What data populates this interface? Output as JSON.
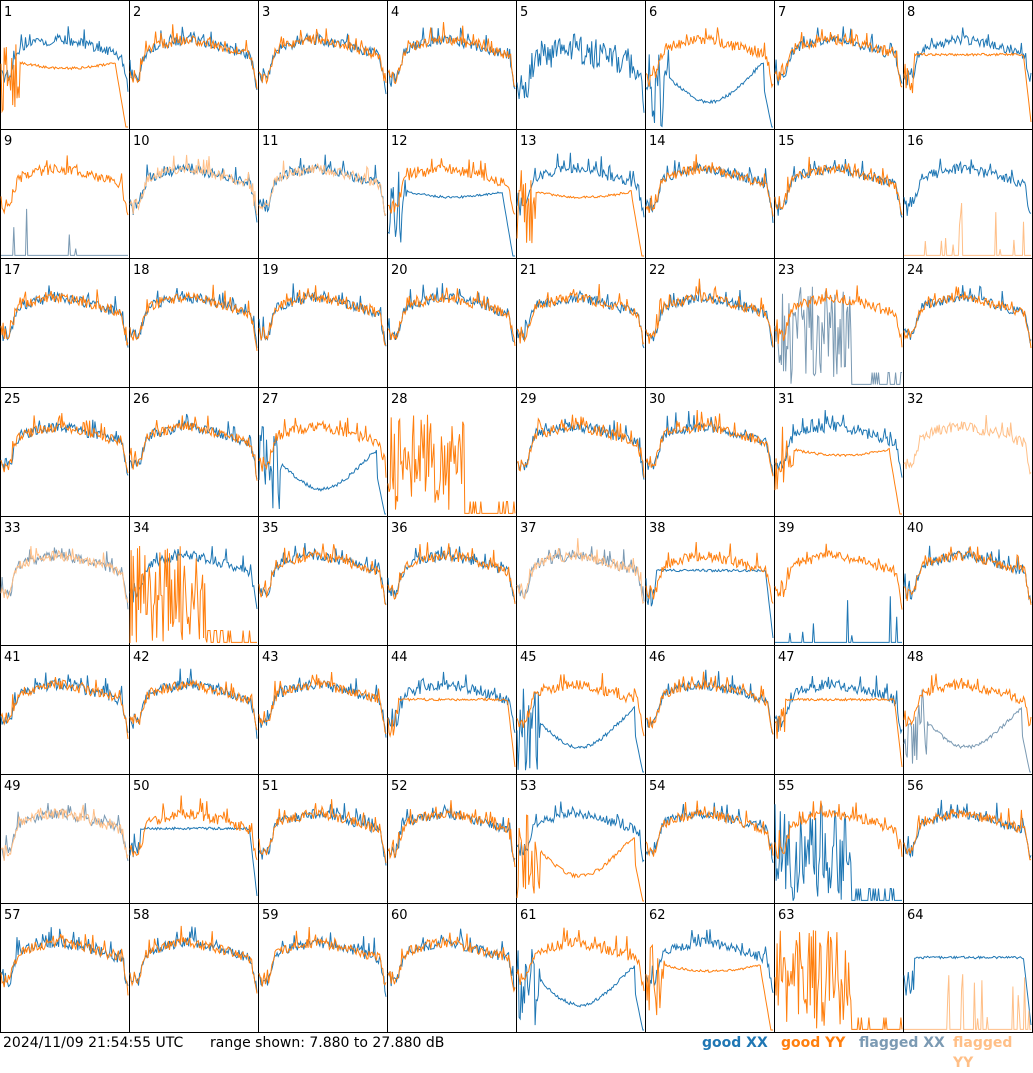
{
  "footer": {
    "timestamp": "2024/11/09 21:54:55 UTC",
    "range": "range shown: 7.880 to 27.880 dB"
  },
  "colors": {
    "good_xx": "#1f77b4",
    "good_yy": "#ff7f0e",
    "flagged_xx": "#7b9ab3",
    "flagged_yy": "#ffbf87"
  },
  "legend": [
    {
      "label": "good XX",
      "color": "#1f77b4"
    },
    {
      "label": "good YY",
      "color": "#ff7f0e"
    },
    {
      "label": "flagged XX",
      "color": "#7b9ab3"
    },
    {
      "label": "flagged YY",
      "color": "#ffbf87"
    }
  ],
  "chart_data": {
    "type": "line",
    "layout": "8x8 small multiples",
    "ylim": [
      7.88,
      27.88
    ],
    "yunit": "dB",
    "panels": [
      {
        "label": "1",
        "xx": "good",
        "yy": "good",
        "xx_shape": "normal",
        "yy_shape": "fall"
      },
      {
        "label": "2",
        "xx": "good",
        "yy": "good",
        "xx_shape": "normal",
        "yy_shape": "normal"
      },
      {
        "label": "3",
        "xx": "good",
        "yy": "good",
        "xx_shape": "normal",
        "yy_shape": "normal"
      },
      {
        "label": "4",
        "xx": "good",
        "yy": "good",
        "xx_shape": "normal",
        "yy_shape": "normal"
      },
      {
        "label": "5",
        "xx": "good",
        "yy": "good",
        "xx_shape": "noisy",
        "yy_shape": "none"
      },
      {
        "label": "6",
        "xx": "good",
        "yy": "good",
        "xx_shape": "dip",
        "yy_shape": "normal"
      },
      {
        "label": "7",
        "xx": "good",
        "yy": "good",
        "xx_shape": "normal",
        "yy_shape": "normal"
      },
      {
        "label": "8",
        "xx": "good",
        "yy": "good",
        "xx_shape": "normal",
        "yy_shape": "flat"
      },
      {
        "label": "9",
        "xx": "flagged",
        "yy": "good",
        "xx_shape": "spikes",
        "yy_shape": "normal"
      },
      {
        "label": "10",
        "xx": "good",
        "yy": "flagged",
        "xx_shape": "normal",
        "yy_shape": "normal"
      },
      {
        "label": "11",
        "xx": "good",
        "yy": "flagged",
        "xx_shape": "normal",
        "yy_shape": "normal"
      },
      {
        "label": "12",
        "xx": "good",
        "yy": "good",
        "xx_shape": "fall",
        "yy_shape": "normal"
      },
      {
        "label": "13",
        "xx": "good",
        "yy": "good",
        "xx_shape": "normal",
        "yy_shape": "fall"
      },
      {
        "label": "14",
        "xx": "good",
        "yy": "good",
        "xx_shape": "normal",
        "yy_shape": "normal"
      },
      {
        "label": "15",
        "xx": "good",
        "yy": "good",
        "xx_shape": "normal",
        "yy_shape": "normal"
      },
      {
        "label": "16",
        "xx": "good",
        "yy": "flagged",
        "xx_shape": "normal",
        "yy_shape": "spikes"
      },
      {
        "label": "17",
        "xx": "good",
        "yy": "good",
        "xx_shape": "normal",
        "yy_shape": "normal"
      },
      {
        "label": "18",
        "xx": "good",
        "yy": "good",
        "xx_shape": "normal",
        "yy_shape": "normal"
      },
      {
        "label": "19",
        "xx": "good",
        "yy": "good",
        "xx_shape": "normal",
        "yy_shape": "normal"
      },
      {
        "label": "20",
        "xx": "good",
        "yy": "good",
        "xx_shape": "normal",
        "yy_shape": "normal"
      },
      {
        "label": "21",
        "xx": "good",
        "yy": "good",
        "xx_shape": "normal",
        "yy_shape": "normal"
      },
      {
        "label": "22",
        "xx": "good",
        "yy": "good",
        "xx_shape": "normal",
        "yy_shape": "normal"
      },
      {
        "label": "23",
        "xx": "flagged",
        "yy": "good",
        "xx_shape": "bars",
        "yy_shape": "normal"
      },
      {
        "label": "24",
        "xx": "good",
        "yy": "good",
        "xx_shape": "normal",
        "yy_shape": "normal"
      },
      {
        "label": "25",
        "xx": "good",
        "yy": "good",
        "xx_shape": "normal",
        "yy_shape": "normal"
      },
      {
        "label": "26",
        "xx": "good",
        "yy": "good",
        "xx_shape": "normal",
        "yy_shape": "normal"
      },
      {
        "label": "27",
        "xx": "good",
        "yy": "good",
        "xx_shape": "dip",
        "yy_shape": "normal"
      },
      {
        "label": "28",
        "xx": "good",
        "yy": "good",
        "xx_shape": "none",
        "yy_shape": "bars"
      },
      {
        "label": "29",
        "xx": "good",
        "yy": "good",
        "xx_shape": "normal",
        "yy_shape": "normal"
      },
      {
        "label": "30",
        "xx": "good",
        "yy": "good",
        "xx_shape": "normal",
        "yy_shape": "normal"
      },
      {
        "label": "31",
        "xx": "good",
        "yy": "good",
        "xx_shape": "normal",
        "yy_shape": "fall"
      },
      {
        "label": "32",
        "xx": "flagged",
        "yy": "flagged",
        "xx_shape": "none",
        "yy_shape": "normal"
      },
      {
        "label": "33",
        "xx": "flagged",
        "yy": "flagged",
        "xx_shape": "normal",
        "yy_shape": "normal"
      },
      {
        "label": "34",
        "xx": "good",
        "yy": "good",
        "xx_shape": "normal",
        "yy_shape": "bars"
      },
      {
        "label": "35",
        "xx": "good",
        "yy": "good",
        "xx_shape": "normal",
        "yy_shape": "normal"
      },
      {
        "label": "36",
        "xx": "good",
        "yy": "good",
        "xx_shape": "normal",
        "yy_shape": "normal"
      },
      {
        "label": "37",
        "xx": "flagged",
        "yy": "flagged",
        "xx_shape": "normal",
        "yy_shape": "normal"
      },
      {
        "label": "38",
        "xx": "good",
        "yy": "good",
        "xx_shape": "flat",
        "yy_shape": "normal"
      },
      {
        "label": "39",
        "xx": "good",
        "yy": "good",
        "xx_shape": "spikes",
        "yy_shape": "normal"
      },
      {
        "label": "40",
        "xx": "good",
        "yy": "good",
        "xx_shape": "normal",
        "yy_shape": "normal"
      },
      {
        "label": "41",
        "xx": "good",
        "yy": "good",
        "xx_shape": "normal",
        "yy_shape": "normal"
      },
      {
        "label": "42",
        "xx": "good",
        "yy": "good",
        "xx_shape": "normal",
        "yy_shape": "normal"
      },
      {
        "label": "43",
        "xx": "good",
        "yy": "good",
        "xx_shape": "normal",
        "yy_shape": "normal"
      },
      {
        "label": "44",
        "xx": "good",
        "yy": "good",
        "xx_shape": "normal",
        "yy_shape": "flat"
      },
      {
        "label": "45",
        "xx": "good",
        "yy": "good",
        "xx_shape": "dip",
        "yy_shape": "normal"
      },
      {
        "label": "46",
        "xx": "good",
        "yy": "good",
        "xx_shape": "normal",
        "yy_shape": "normal"
      },
      {
        "label": "47",
        "xx": "good",
        "yy": "good",
        "xx_shape": "normal",
        "yy_shape": "flat"
      },
      {
        "label": "48",
        "xx": "flagged",
        "yy": "good",
        "xx_shape": "dip",
        "yy_shape": "normal"
      },
      {
        "label": "49",
        "xx": "flagged",
        "yy": "flagged",
        "xx_shape": "normal",
        "yy_shape": "normal"
      },
      {
        "label": "50",
        "xx": "good",
        "yy": "good",
        "xx_shape": "flat",
        "yy_shape": "normal"
      },
      {
        "label": "51",
        "xx": "good",
        "yy": "good",
        "xx_shape": "normal",
        "yy_shape": "normal"
      },
      {
        "label": "52",
        "xx": "good",
        "yy": "good",
        "xx_shape": "normal",
        "yy_shape": "normal"
      },
      {
        "label": "53",
        "xx": "good",
        "yy": "good",
        "xx_shape": "normal",
        "yy_shape": "dip"
      },
      {
        "label": "54",
        "xx": "good",
        "yy": "good",
        "xx_shape": "normal",
        "yy_shape": "normal"
      },
      {
        "label": "55",
        "xx": "good",
        "yy": "good",
        "xx_shape": "bars",
        "yy_shape": "normal"
      },
      {
        "label": "56",
        "xx": "good",
        "yy": "good",
        "xx_shape": "normal",
        "yy_shape": "normal"
      },
      {
        "label": "57",
        "xx": "good",
        "yy": "good",
        "xx_shape": "normal",
        "yy_shape": "normal"
      },
      {
        "label": "58",
        "xx": "good",
        "yy": "good",
        "xx_shape": "normal",
        "yy_shape": "normal"
      },
      {
        "label": "59",
        "xx": "good",
        "yy": "good",
        "xx_shape": "normal",
        "yy_shape": "normal"
      },
      {
        "label": "60",
        "xx": "good",
        "yy": "good",
        "xx_shape": "normal",
        "yy_shape": "normal"
      },
      {
        "label": "61",
        "xx": "good",
        "yy": "good",
        "xx_shape": "dip",
        "yy_shape": "normal"
      },
      {
        "label": "62",
        "xx": "good",
        "yy": "good",
        "xx_shape": "normal",
        "yy_shape": "fall"
      },
      {
        "label": "63",
        "xx": "good",
        "yy": "good",
        "xx_shape": "none",
        "yy_shape": "bars"
      },
      {
        "label": "64",
        "xx": "good",
        "yy": "flagged",
        "xx_shape": "flat",
        "yy_shape": "spikes"
      }
    ]
  }
}
